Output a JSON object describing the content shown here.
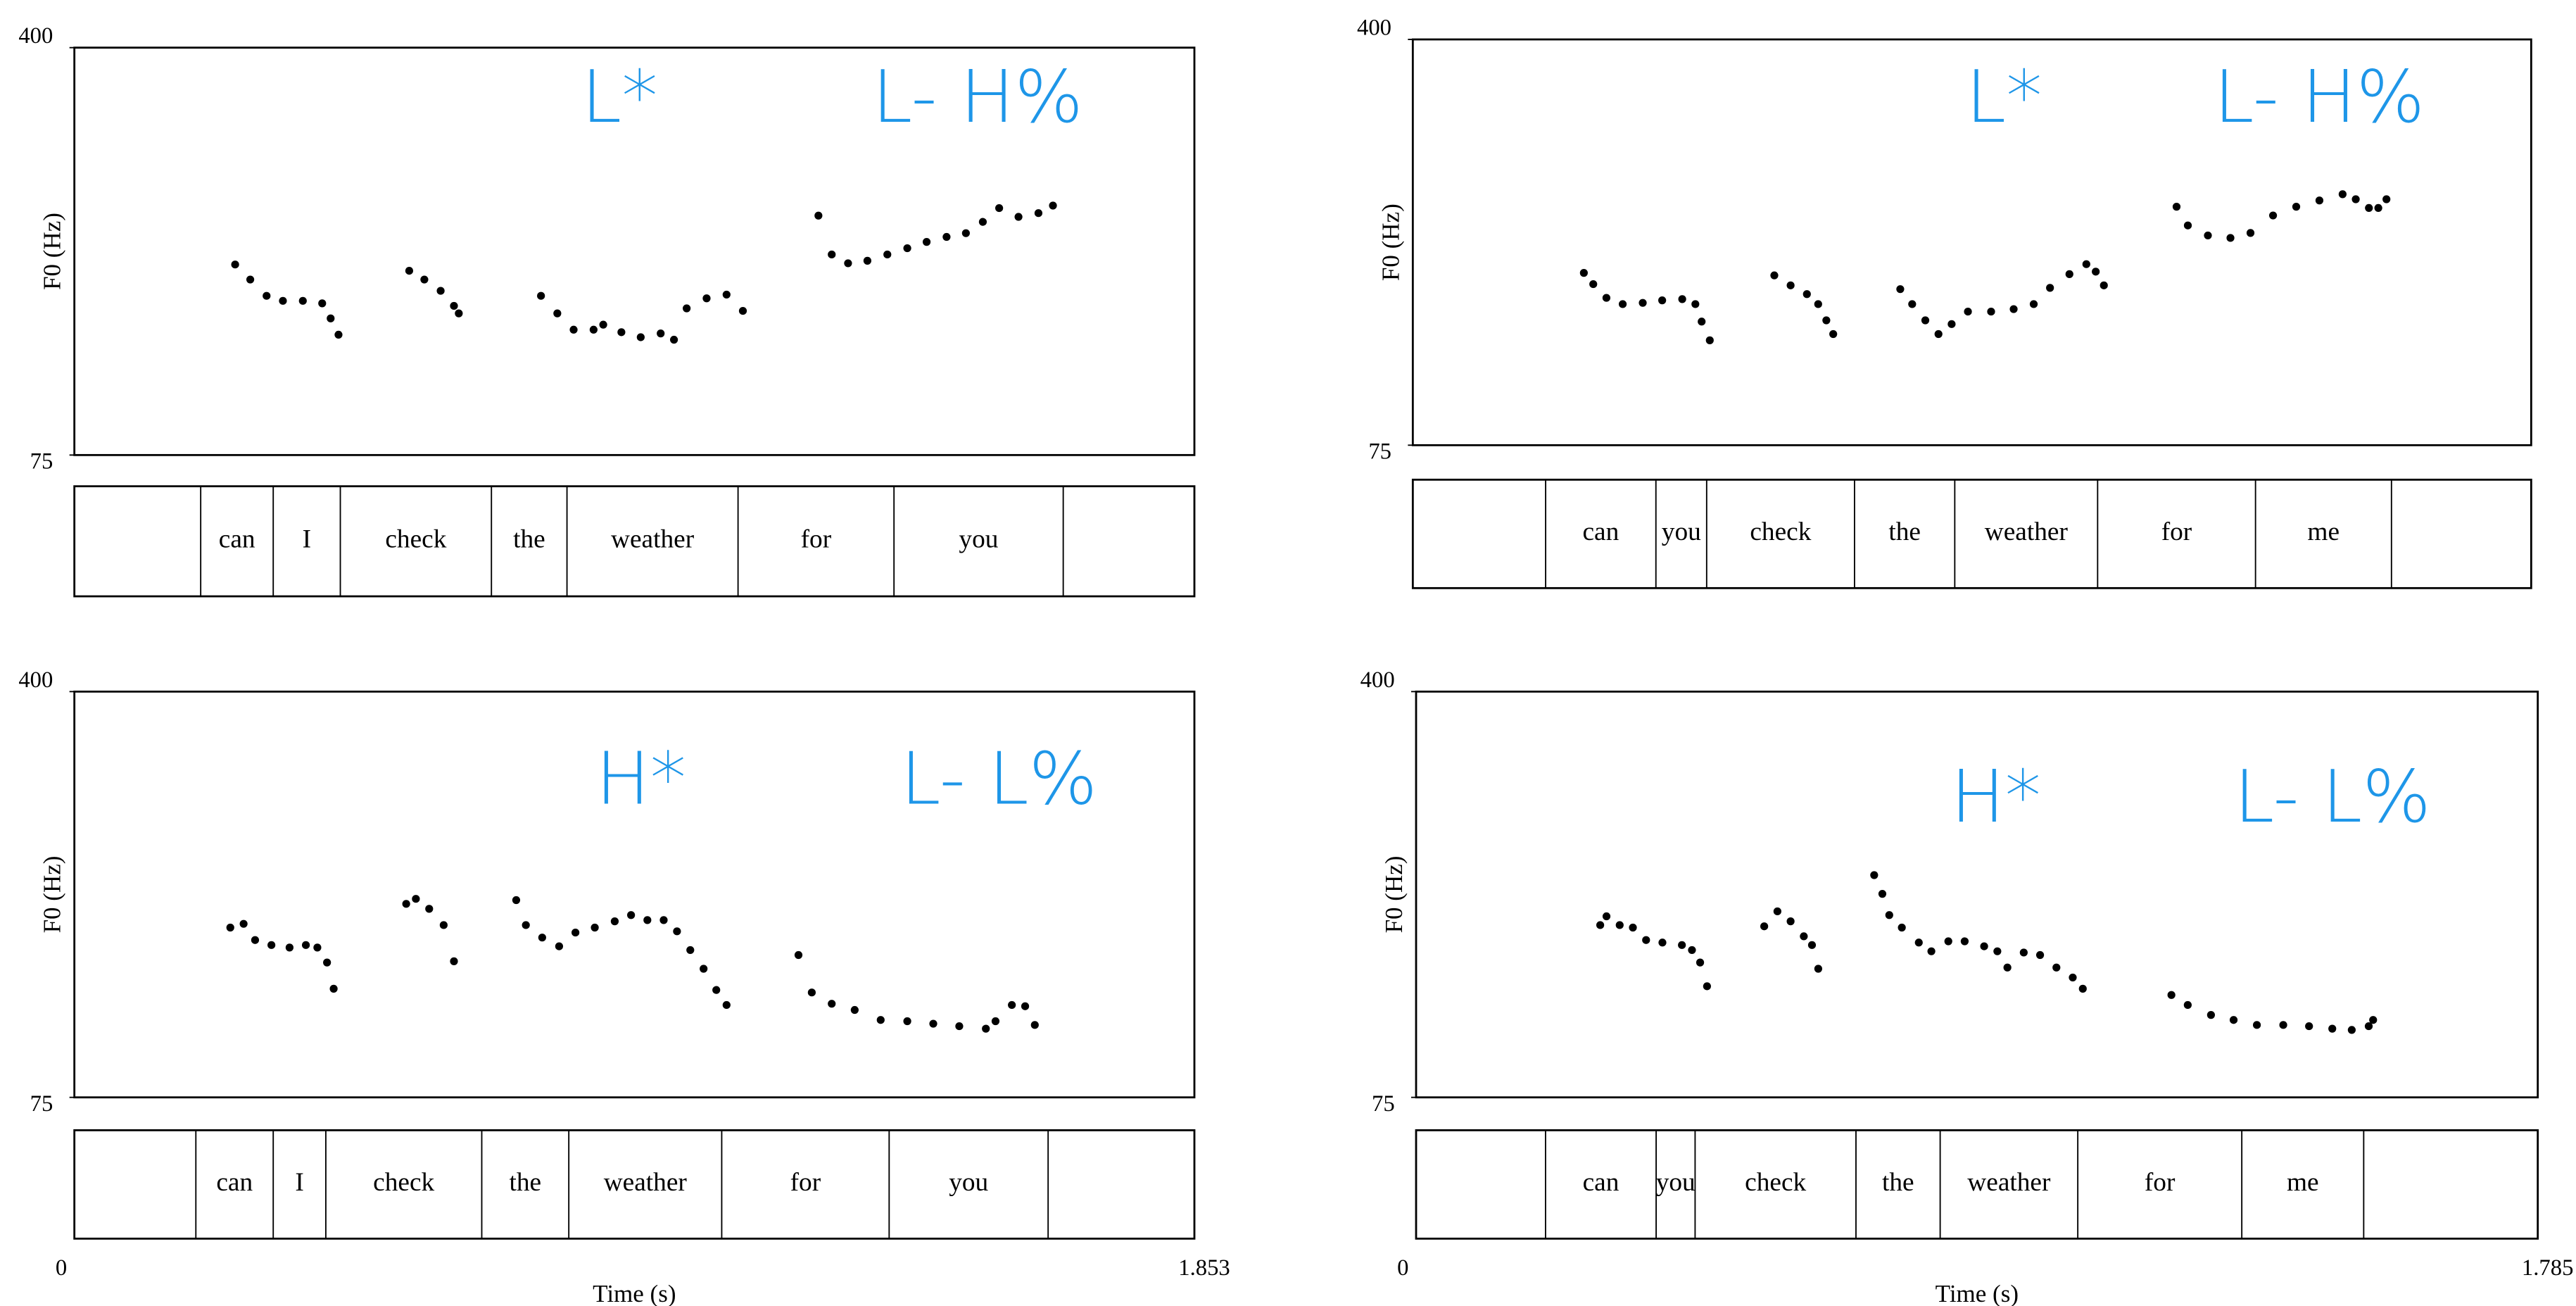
{
  "chart_data": [
    {
      "type": "scatter",
      "y_label": "F0 (Hz)",
      "annotations": [
        "L*",
        "L- H%"
      ],
      "color": "#000000",
      "xlim": [
        0,
        1.853
      ],
      "ylim": [
        75,
        400
      ],
      "yticks": [
        75,
        400
      ],
      "x": [
        0.266,
        0.291,
        0.318,
        0.345,
        0.378,
        0.41,
        0.424,
        0.437,
        0.554,
        0.579,
        0.606,
        0.628,
        0.636,
        0.772,
        0.799,
        0.826,
        0.859,
        0.875,
        0.905,
        0.937,
        0.97,
        0.992,
        1.013,
        1.046,
        1.079,
        1.106,
        1.231,
        1.253,
        1.28,
        1.312,
        1.345,
        1.378,
        1.41,
        1.443,
        1.475,
        1.503,
        1.53,
        1.562,
        1.595,
        1.619
      ],
      "values": [
        227,
        215,
        202,
        198,
        198,
        196,
        184,
        171,
        222,
        215,
        206,
        194,
        188,
        202,
        188,
        175,
        175,
        179,
        173,
        169,
        172,
        167,
        192,
        200,
        203,
        190,
        266,
        235,
        228,
        230,
        235,
        240,
        245,
        249,
        252,
        261,
        272,
        265,
        268,
        274
      ],
      "tier": {
        "words": [
          null,
          "can",
          "I",
          "check",
          "the",
          "weather",
          "for",
          "you",
          null
        ],
        "boundaries": [
          0,
          0.209,
          0.329,
          0.44,
          0.69,
          0.815,
          1.098,
          1.356,
          1.636,
          1.853
        ]
      }
    },
    {
      "type": "scatter",
      "y_label": "F0 (Hz)",
      "annotations": [
        "L*",
        "L- H%"
      ],
      "color": "#000000",
      "xlim": [
        0,
        1.785
      ],
      "ylim": [
        75,
        400
      ],
      "yticks": [
        75,
        400
      ],
      "x": [
        0.273,
        0.288,
        0.309,
        0.335,
        0.367,
        0.398,
        0.43,
        0.451,
        0.461,
        0.474,
        0.577,
        0.603,
        0.629,
        0.647,
        0.66,
        0.671,
        0.778,
        0.797,
        0.818,
        0.839,
        0.86,
        0.886,
        0.923,
        0.959,
        0.991,
        1.017,
        1.048,
        1.075,
        1.09,
        1.103,
        1.219,
        1.237,
        1.269,
        1.305,
        1.337,
        1.373,
        1.41,
        1.447,
        1.484,
        1.505,
        1.526,
        1.541,
        1.554
      ],
      "values": [
        213,
        204,
        193,
        188,
        189,
        191,
        192,
        188,
        174,
        159,
        211,
        203,
        196,
        188,
        175,
        164,
        200,
        188,
        175,
        164,
        172,
        182,
        182,
        184,
        188,
        201,
        212,
        220,
        214,
        203,
        266,
        251,
        243,
        241,
        245,
        259,
        266,
        271,
        276,
        272,
        265,
        265,
        272
      ],
      "tier": {
        "words": [
          null,
          "can",
          "you",
          "check",
          "the",
          "weather",
          "for",
          "me",
          null
        ],
        "boundaries": [
          0,
          0.212,
          0.388,
          0.469,
          0.705,
          0.865,
          1.093,
          1.345,
          1.562,
          1.785
        ]
      }
    },
    {
      "type": "scatter",
      "y_label": "F0 (Hz)",
      "x_label": "Time (s)",
      "annotations": [
        "H*",
        "L- L%"
      ],
      "color": "#000000",
      "xlim": [
        0,
        1.853
      ],
      "ylim": [
        75,
        400
      ],
      "yticks": [
        75,
        400
      ],
      "xticks": [
        0,
        1.853
      ],
      "x": [
        0.258,
        0.28,
        0.299,
        0.326,
        0.356,
        0.383,
        0.402,
        0.418,
        0.429,
        0.549,
        0.565,
        0.587,
        0.611,
        0.628,
        0.731,
        0.747,
        0.774,
        0.802,
        0.829,
        0.861,
        0.894,
        0.921,
        0.948,
        0.975,
        0.997,
        1.019,
        1.041,
        1.062,
        1.079,
        1.198,
        1.22,
        1.253,
        1.291,
        1.334,
        1.378,
        1.421,
        1.464,
        1.508,
        1.524,
        1.551,
        1.573,
        1.589
      ],
      "values": [
        211,
        214,
        201,
        197,
        195,
        197,
        195,
        183,
        162,
        230,
        234,
        226,
        213,
        184,
        233,
        213,
        203,
        196,
        207,
        211,
        216,
        221,
        217,
        217,
        208,
        193,
        178,
        161,
        149,
        189,
        159,
        150,
        145,
        137,
        136,
        134,
        132,
        130,
        136,
        149,
        148,
        133
      ],
      "tier": {
        "words": [
          null,
          "can",
          "I",
          "check",
          "the",
          "weather",
          "for",
          "you",
          null
        ],
        "boundaries": [
          0,
          0.201,
          0.329,
          0.416,
          0.674,
          0.818,
          1.071,
          1.348,
          1.611,
          1.853
        ]
      }
    },
    {
      "type": "scatter",
      "y_label": "F0 (Hz)",
      "x_label": "Time (s)",
      "annotations": [
        "H*",
        "L- L%"
      ],
      "color": "#000000",
      "xlim": [
        0,
        1.785
      ],
      "ylim": [
        75,
        400
      ],
      "yticks": [
        75,
        400
      ],
      "xticks": [
        0,
        1.785
      ],
      "x": [
        0.293,
        0.303,
        0.324,
        0.345,
        0.366,
        0.392,
        0.423,
        0.439,
        0.452,
        0.463,
        0.554,
        0.575,
        0.596,
        0.617,
        0.63,
        0.64,
        0.729,
        0.742,
        0.753,
        0.773,
        0.8,
        0.82,
        0.847,
        0.873,
        0.904,
        0.925,
        0.941,
        0.967,
        0.993,
        1.019,
        1.045,
        1.061,
        1.202,
        1.228,
        1.265,
        1.301,
        1.338,
        1.38,
        1.421,
        1.458,
        1.489,
        1.516,
        1.523
      ],
      "values": [
        213,
        220,
        213,
        211,
        201,
        199,
        197,
        193,
        183,
        164,
        212,
        224,
        216,
        204,
        197,
        178,
        253,
        238,
        221,
        211,
        199,
        192,
        200,
        200,
        196,
        192,
        179,
        191,
        189,
        179,
        171,
        162,
        157,
        149,
        141,
        137,
        133,
        133,
        132,
        130,
        129,
        132,
        137
      ],
      "tier": {
        "words": [
          null,
          "can",
          "you",
          "check",
          "the",
          "weather",
          "for",
          "me",
          null
        ],
        "boundaries": [
          0,
          0.206,
          0.382,
          0.444,
          0.7,
          0.834,
          1.053,
          1.314,
          1.508,
          1.785
        ]
      }
    }
  ]
}
